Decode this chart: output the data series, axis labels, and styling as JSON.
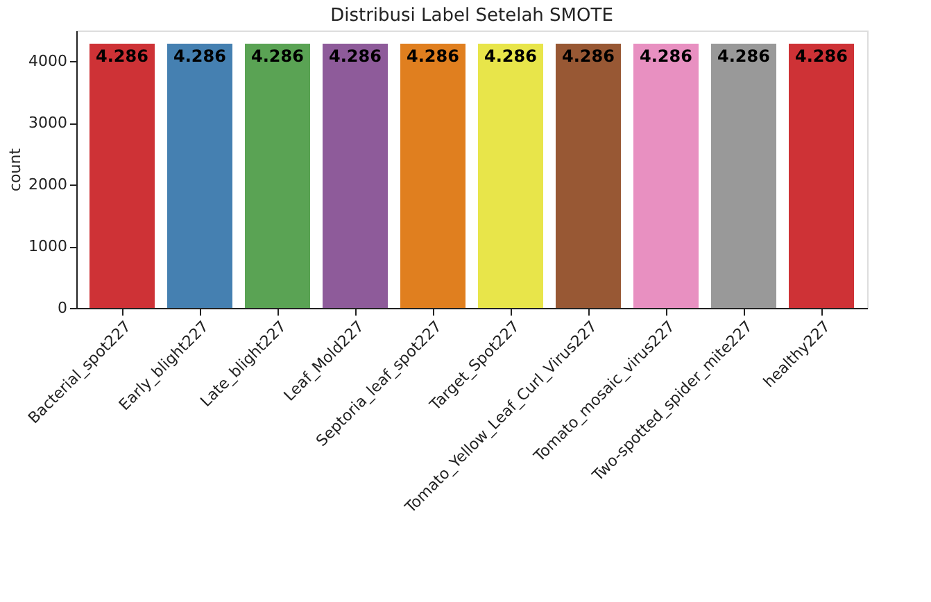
{
  "chart_data": {
    "type": "bar",
    "title": "Distribusi Label Setelah SMOTE",
    "ylabel": "count",
    "categories": [
      "Bacterial_spot227",
      "Early_blight227",
      "Late_blight227",
      "Leaf_Mold227",
      "Septoria_leaf_spot227",
      "Target_Spot227",
      "Tomato_Yellow_Leaf_Curl_Virus227",
      "Tomato_mosaic_virus227",
      "Two-spotted_spider_mite227",
      "healthy227"
    ],
    "values": [
      4286,
      4286,
      4286,
      4286,
      4286,
      4286,
      4286,
      4286,
      4286,
      4286
    ],
    "value_labels": [
      "4.286",
      "4.286",
      "4.286",
      "4.286",
      "4.286",
      "4.286",
      "4.286",
      "4.286",
      "4.286",
      "4.286"
    ],
    "colors": [
      "#ce3236",
      "#4580b1",
      "#5aa354",
      "#8e5b9a",
      "#e07f1f",
      "#e8e54a",
      "#985834",
      "#e890c1",
      "#999999",
      "#ce3236"
    ],
    "ylim": [
      0,
      4500
    ],
    "yticks": [
      0,
      1000,
      2000,
      3000,
      4000
    ],
    "grid": false
  }
}
